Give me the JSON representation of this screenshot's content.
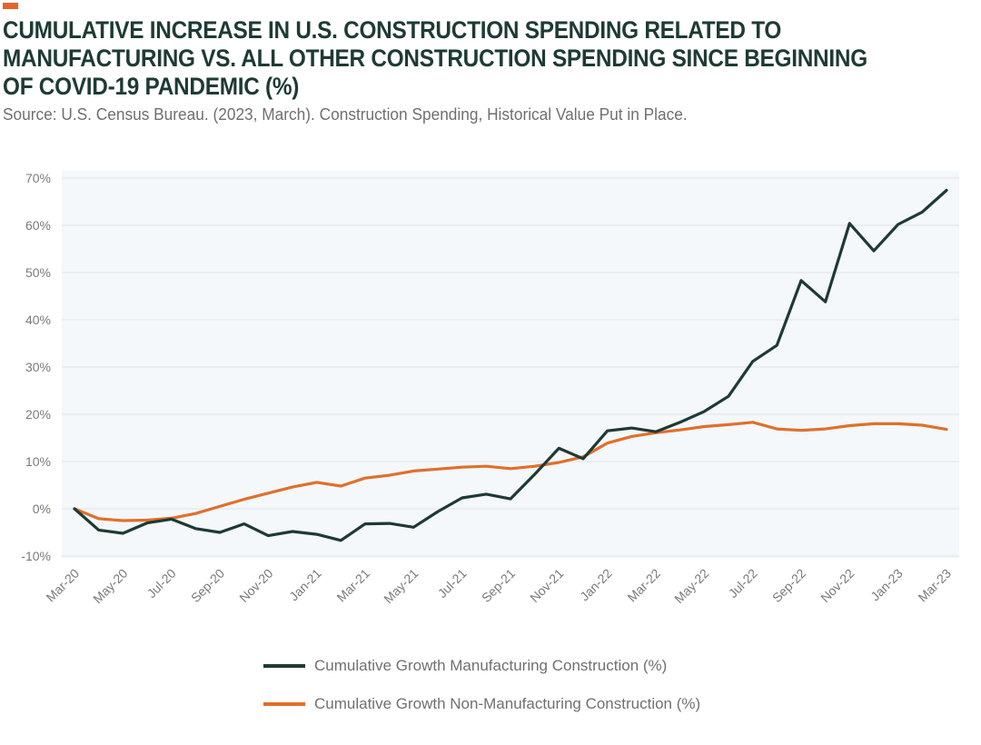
{
  "header": {
    "title": "CUMULATIVE INCREASE IN U.S. CONSTRUCTION SPENDING RELATED TO MANUFACTURING VS. ALL OTHER CONSTRUCTION SPENDING SINCE BEGINNING OF COVID-19 PANDEMIC (%)",
    "source": "Source: U.S. Census Bureau. (2023, March). Construction Spending, Historical Value Put in Place."
  },
  "colors": {
    "accent": "#e8622c",
    "manufacturing": "#1d3a33",
    "non_manufacturing": "#e06f2c",
    "plot_background": "#f4f8fa",
    "gridline": "#e6ebee"
  },
  "legend": {
    "items": [
      {
        "label": "Cumulative Growth Manufacturing Construction (%)"
      },
      {
        "label": "Cumulative Growth Non-Manufacturing Construction (%)"
      }
    ]
  },
  "chart_data": {
    "type": "line",
    "title": "CUMULATIVE INCREASE IN U.S. CONSTRUCTION SPENDING RELATED TO MANUFACTURING VS. ALL OTHER CONSTRUCTION SPENDING SINCE BEGINNING OF COVID-19 PANDEMIC (%)",
    "xlabel": "",
    "ylabel": "",
    "ylim": [
      -10,
      70
    ],
    "yticks": [
      -10,
      0,
      10,
      20,
      30,
      40,
      50,
      60,
      70
    ],
    "ytick_labels": [
      "-10%",
      "0%",
      "10%",
      "20%",
      "30%",
      "40%",
      "50%",
      "60%",
      "70%"
    ],
    "grid": true,
    "legend_position": "bottom",
    "x": [
      "Mar-20",
      "Apr-20",
      "May-20",
      "Jun-20",
      "Jul-20",
      "Aug-20",
      "Sep-20",
      "Oct-20",
      "Nov-20",
      "Dec-20",
      "Jan-21",
      "Feb-21",
      "Mar-21",
      "Apr-21",
      "May-21",
      "Jun-21",
      "Jul-21",
      "Aug-21",
      "Sep-21",
      "Oct-21",
      "Nov-21",
      "Dec-21",
      "Jan-22",
      "Feb-22",
      "Mar-22",
      "Apr-22",
      "May-22",
      "Jun-22",
      "Jul-22",
      "Aug-22",
      "Sep-22",
      "Oct-22",
      "Nov-22",
      "Dec-22",
      "Jan-23",
      "Feb-23",
      "Mar-23"
    ],
    "xtick_labels": [
      "Mar-20",
      "May-20",
      "Jul-20",
      "Sep-20",
      "Nov-20",
      "Jan-21",
      "Mar-21",
      "May-21",
      "Jul-21",
      "Sep-21",
      "Nov-21",
      "Jan-22",
      "Mar-22",
      "May-22",
      "Jul-22",
      "Sep-22",
      "Nov-22",
      "Jan-23",
      "Mar-23"
    ],
    "series": [
      {
        "name": "Cumulative Growth Manufacturing Construction (%)",
        "values": [
          0,
          -4.5,
          -5.2,
          -3.0,
          -2.2,
          -4.2,
          -5.0,
          -3.2,
          -5.7,
          -4.8,
          -5.4,
          -6.7,
          -3.2,
          -3.1,
          -3.9,
          -0.6,
          2.3,
          3.1,
          2.1,
          7.3,
          12.8,
          10.6,
          16.5,
          17.1,
          16.3,
          18.3,
          20.6,
          23.8,
          31.2,
          34.6,
          48.3,
          43.8,
          60.4,
          54.6,
          60.2,
          62.8,
          67.4
        ]
      },
      {
        "name": "Cumulative Growth Non-Manufacturing Construction (%)",
        "values": [
          0,
          -2.1,
          -2.5,
          -2.4,
          -2.0,
          -1.0,
          0.5,
          2.0,
          3.3,
          4.6,
          5.6,
          4.8,
          6.5,
          7.1,
          8.0,
          8.4,
          8.8,
          9.0,
          8.5,
          9.0,
          9.8,
          11.0,
          13.9,
          15.3,
          16.1,
          16.7,
          17.4,
          17.8,
          18.3,
          16.9,
          16.6,
          16.9,
          17.6,
          18.0,
          18.0,
          17.7,
          16.8
        ]
      }
    ]
  }
}
